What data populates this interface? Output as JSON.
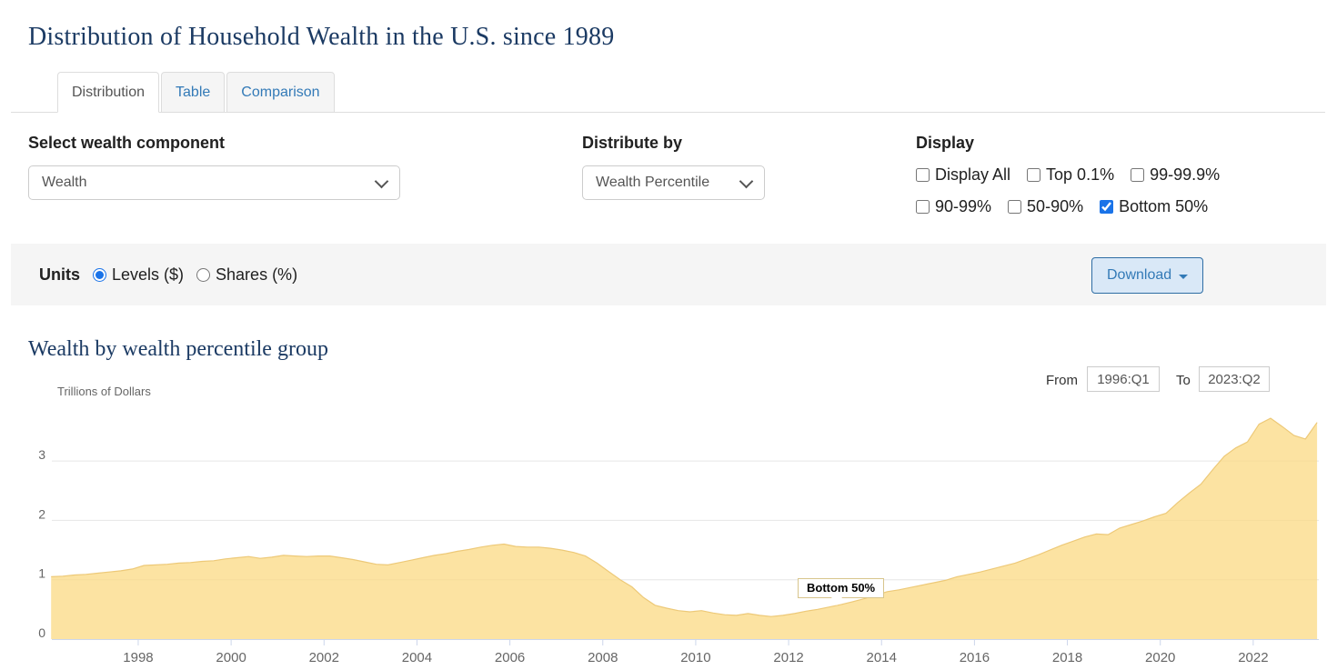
{
  "page": {
    "title": "Distribution of Household Wealth in the U.S. since 1989"
  },
  "tabs": [
    {
      "label": "Distribution",
      "active": true
    },
    {
      "label": "Table",
      "active": false
    },
    {
      "label": "Comparison",
      "active": false
    }
  ],
  "controls": {
    "wealth_component": {
      "label": "Select wealth component",
      "value": "Wealth",
      "icon": "chevron-down-icon"
    },
    "distribute_by": {
      "label": "Distribute by",
      "value": "Wealth Percentile",
      "icon": "chevron-down-icon"
    },
    "display": {
      "label": "Display",
      "row1": [
        {
          "label": "Display All",
          "checked": false
        },
        {
          "label": "Top 0.1%",
          "checked": false
        },
        {
          "label": "99-99.9%",
          "checked": false
        }
      ],
      "row2": [
        {
          "label": "90-99%",
          "checked": false
        },
        {
          "label": "50-90%",
          "checked": false
        },
        {
          "label": "Bottom 50%",
          "checked": true
        }
      ]
    }
  },
  "units": {
    "label": "Units",
    "options": [
      {
        "label": "Levels ($)",
        "selected": true
      },
      {
        "label": "Shares (%)",
        "selected": false
      }
    ]
  },
  "download": {
    "label": "Download",
    "icon": "caret-down-icon"
  },
  "section": {
    "title": "Wealth by wealth percentile group"
  },
  "range": {
    "from_label": "From",
    "from_value": "1996:Q1",
    "to_label": "To",
    "to_value": "2023:Q2"
  },
  "chart_data": {
    "type": "area",
    "title": "Wealth by wealth percentile group",
    "ylabel": "Trillions of Dollars",
    "series_label": "Bottom 50%",
    "x_start_year": 1996,
    "points_per_year": 4,
    "x_tick_labels": [
      "1998",
      "2000",
      "2002",
      "2004",
      "2006",
      "2008",
      "2010",
      "2012",
      "2014",
      "2016",
      "2018",
      "2020",
      "2022"
    ],
    "y_ticks": [
      0,
      1,
      2,
      3
    ],
    "ylim": [
      0,
      3.87
    ],
    "xlim_labels": [
      "1996:Q1",
      "2023:Q2"
    ],
    "grid": true,
    "values": [
      1.05,
      1.06,
      1.08,
      1.09,
      1.11,
      1.13,
      1.15,
      1.18,
      1.24,
      1.25,
      1.26,
      1.28,
      1.29,
      1.31,
      1.32,
      1.35,
      1.37,
      1.39,
      1.36,
      1.38,
      1.41,
      1.4,
      1.39,
      1.4,
      1.4,
      1.37,
      1.34,
      1.3,
      1.26,
      1.25,
      1.29,
      1.33,
      1.37,
      1.41,
      1.44,
      1.48,
      1.51,
      1.55,
      1.58,
      1.6,
      1.56,
      1.55,
      1.55,
      1.53,
      1.5,
      1.46,
      1.4,
      1.28,
      1.14,
      1.0,
      0.88,
      0.7,
      0.57,
      0.52,
      0.48,
      0.46,
      0.48,
      0.44,
      0.41,
      0.4,
      0.43,
      0.4,
      0.38,
      0.4,
      0.43,
      0.47,
      0.5,
      0.54,
      0.58,
      0.63,
      0.68,
      0.74,
      0.8,
      0.83,
      0.87,
      0.91,
      0.95,
      0.99,
      1.05,
      1.09,
      1.13,
      1.18,
      1.23,
      1.28,
      1.35,
      1.42,
      1.5,
      1.58,
      1.65,
      1.72,
      1.77,
      1.76,
      1.87,
      1.93,
      1.99,
      2.06,
      2.12,
      2.3,
      2.46,
      2.61,
      2.85,
      3.08,
      3.22,
      3.32,
      3.62,
      3.72,
      3.58,
      3.43,
      3.37,
      3.65
    ],
    "colors": {
      "area_fill": "#fbda83",
      "area_fill_opacity": 0.75,
      "area_line": "#edc978",
      "grid_line": "#e6e6e6",
      "axis_line": "#ccd6eb",
      "tick_label": "#666666"
    }
  }
}
